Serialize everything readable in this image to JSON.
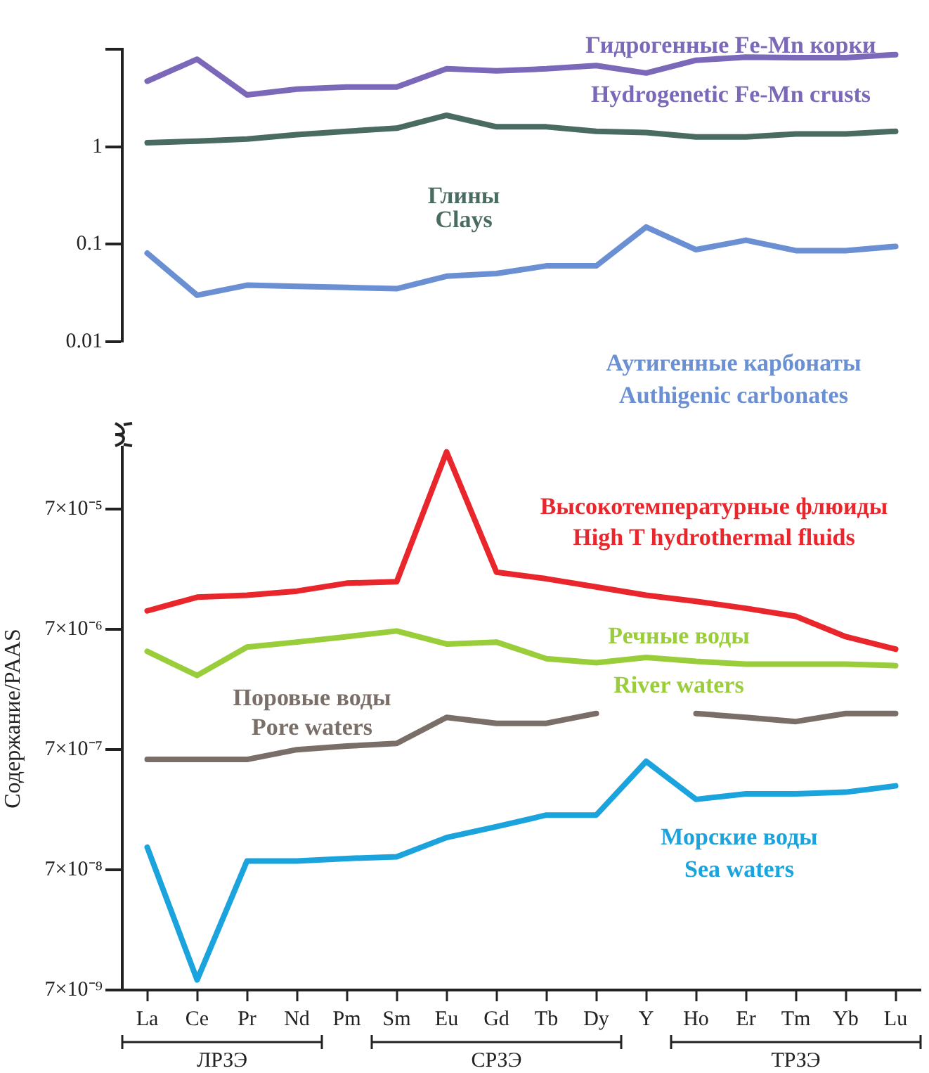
{
  "chart_data": [
    {
      "type": "line",
      "categories": [
        null,
        null,
        null,
        null,
        null,
        null,
        null,
        null,
        null,
        null,
        null,
        null,
        null,
        null,
        null,
        null
      ],
      "log": "y",
      "ylim": [
        0.01,
        10
      ],
      "yticks": [
        {
          "value": 10,
          "label": null
        },
        1,
        0.1,
        0.01
      ],
      "tick_labels": "y",
      "grid": false,
      "legend": false,
      "marker": "none",
      "line_style": "solid",
      "series": [
        {
          "name": "Гидрогенные Fe-Mn корки\nHydrogenetic Fe-Mn crusts",
          "color": "#7b68b8",
          "values": [
            4.7,
            7.9,
            3.4,
            3.9,
            4.1,
            4.1,
            6.3,
            6.0,
            6.3,
            6.8,
            5.7,
            7.7,
            8.3,
            8.2,
            8.2,
            8.8
          ]
        },
        {
          "name": "Глины\nClays",
          "color": "#4a6b62",
          "values": [
            1.1,
            1.14,
            1.2,
            1.33,
            1.44,
            1.55,
            2.1,
            1.6,
            1.6,
            1.44,
            1.4,
            1.26,
            1.26,
            1.35,
            1.35,
            1.44
          ]
        },
        {
          "name": "Аутигенные карбонаты\nAuthigenic carbonates",
          "color": "#6a8fd2",
          "values": [
            0.081,
            0.03,
            0.038,
            0.037,
            0.036,
            0.035,
            0.047,
            0.05,
            0.06,
            0.06,
            0.15,
            0.088,
            0.11,
            0.086,
            0.086,
            0.095
          ]
        }
      ]
    },
    {
      "type": "line",
      "categories": [
        "La",
        "Ce",
        "Pr",
        "Nd",
        "Pm",
        "Sm",
        "Eu",
        "Gd",
        "Tb",
        "Dy",
        "Y",
        "Ho",
        "Er",
        "Tm",
        "Yb",
        "Lu"
      ],
      "log": "y",
      "ylim": [
        7e-09,
        0.00023
      ],
      "yticks": [
        {
          "value": 7e-05,
          "label": "7×10⁻⁵"
        },
        {
          "value": 7e-06,
          "label": "7×10⁻⁶"
        },
        {
          "value": 7e-07,
          "label": "7×10⁻⁷"
        },
        {
          "value": 7e-08,
          "label": "7×10⁻⁸"
        },
        {
          "value": 7e-09,
          "label": "7×10⁻⁹"
        }
      ],
      "ylabel": "Содержание/PAAS",
      "grid": false,
      "legend": false,
      "marker": "none",
      "line_style": "solid",
      "annotations": [
        "ЛРЗЭ",
        "СРЗЭ",
        "ТРЗЭ"
      ],
      "series": [
        {
          "name": "Высокотемпературные флюиды\nHigh T hydrothermal fluids",
          "color": "#e8262b",
          "values": [
            1e-05,
            1.3e-05,
            1.35e-05,
            1.46e-05,
            1.7e-05,
            1.75e-05,
            0.00021,
            2.1e-05,
            1.85e-05,
            1.58e-05,
            1.35e-05,
            1.2e-05,
            1.05e-05,
            9e-06,
            6.1e-06,
            4.8e-06
          ]
        },
        {
          "name": "Речные воды\nRiver waters",
          "color": "#9acd3a",
          "values": [
            4.6e-06,
            2.9e-06,
            5e-06,
            5.5e-06,
            6.1e-06,
            6.8e-06,
            5.3e-06,
            5.5e-06,
            4e-06,
            3.7e-06,
            4.1e-06,
            3.8e-06,
            3.6e-06,
            3.6e-06,
            3.6e-06,
            3.5e-06
          ]
        },
        {
          "name": "Поровые воды\nPore waters",
          "color": "#7a6e68",
          "values": [
            5.8e-07,
            5.8e-07,
            5.8e-07,
            7e-07,
            7.5e-07,
            7.9e-07,
            1.3e-06,
            1.16e-06,
            1.16e-06,
            1.4e-06,
            null,
            1.4e-06,
            1.3e-06,
            1.2e-06,
            1.4e-06,
            1.4e-06
          ]
        },
        {
          "name": "Морские воды\nSea waters",
          "color": "#1aa3dc",
          "values": [
            1.08e-07,
            8.5e-09,
            8.3e-08,
            8.3e-08,
            8.7e-08,
            9e-08,
            1.3e-07,
            1.6e-07,
            2e-07,
            2e-07,
            5.6e-07,
            2.7e-07,
            3e-07,
            3e-07,
            3.1e-07,
            3.5e-07
          ]
        }
      ]
    }
  ]
}
